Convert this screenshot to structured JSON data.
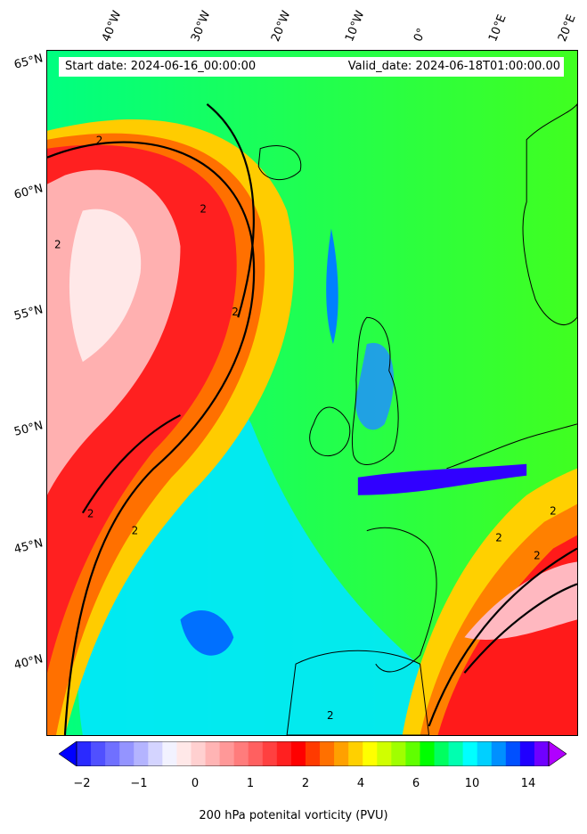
{
  "header": {
    "start_date": "Start date: 2024-06-16_00:00:00",
    "valid_date": "Valid_date: 2024-06-18T01:00:00.00"
  },
  "longitude_labels": [
    "40°W",
    "30°W",
    "20°W",
    "10°W",
    "0°",
    "10°E",
    "20°E"
  ],
  "latitude_labels": [
    "65°N",
    "60°N",
    "55°N",
    "50°N",
    "45°N",
    "40°N"
  ],
  "contour_label": "2",
  "colorbar": {
    "ticks": [
      "−2",
      "−1",
      "0",
      "1",
      "2",
      "4",
      "6",
      "10",
      "14"
    ],
    "label": "200 hPa potenital vorticity (PVU)",
    "colors": [
      "#0000ff",
      "#2a2aff",
      "#5050ff",
      "#7070ff",
      "#9494ff",
      "#b4b4ff",
      "#d4d4ff",
      "#f2f2ff",
      "#ffe8e8",
      "#ffd0d0",
      "#ffb4b4",
      "#ff9898",
      "#ff7c7c",
      "#ff6060",
      "#ff4040",
      "#ff2020",
      "#ff0000",
      "#ff3a00",
      "#ff7000",
      "#ffa000",
      "#ffd000",
      "#ffff00",
      "#d0ff00",
      "#a0ff00",
      "#60ff00",
      "#00ff00",
      "#00ff60",
      "#00ffb0",
      "#00ffff",
      "#00d0ff",
      "#0090ff",
      "#0050ff",
      "#2000ff",
      "#7000ff",
      "#b000ff"
    ]
  }
}
